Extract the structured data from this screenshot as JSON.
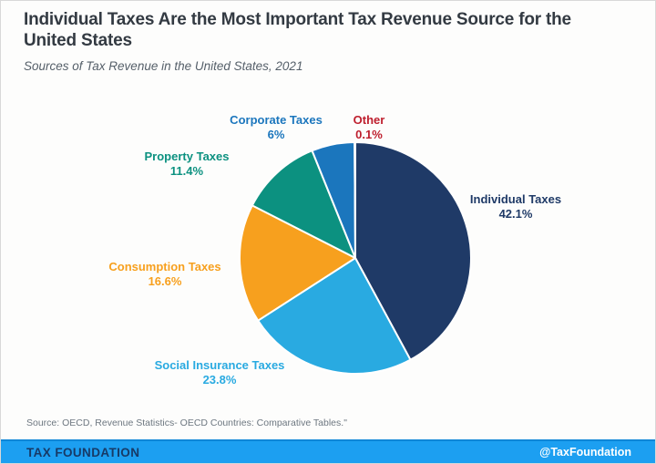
{
  "header": {
    "title": "Individual Taxes Are the Most Important Tax Revenue Source for the United States",
    "subtitle": "Sources of Tax Revenue in the United States, 2021"
  },
  "chart_data": {
    "type": "pie",
    "title": "Sources of Tax Revenue in the United States, 2021",
    "units": "percent",
    "start_angle": "12 o'clock",
    "direction": "clockwise",
    "slices": [
      {
        "label": "Individual Taxes",
        "value": 42.1,
        "value_label": "42.1%",
        "color": "#1f3a67"
      },
      {
        "label": "Social Insurance Taxes",
        "value": 23.8,
        "value_label": "23.8%",
        "color": "#29aae1"
      },
      {
        "label": "Consumption Taxes",
        "value": 16.6,
        "value_label": "16.6%",
        "color": "#f7a01e"
      },
      {
        "label": "Property Taxes",
        "value": 11.4,
        "value_label": "11.4%",
        "color": "#0c9180"
      },
      {
        "label": "Corporate Taxes",
        "value": 6,
        "value_label": "6%",
        "color": "#1b76bd"
      },
      {
        "label": "Other",
        "value": 0.1,
        "value_label": "0.1%",
        "color": "#be1e2d"
      }
    ]
  },
  "footer": {
    "source": "Source: OECD, Revenue Statistics- OECD Countries: Comparative Tables.\"",
    "brand": "TAX FOUNDATION",
    "handle": "@TaxFoundation",
    "bar_color": "#1c9ff1"
  }
}
